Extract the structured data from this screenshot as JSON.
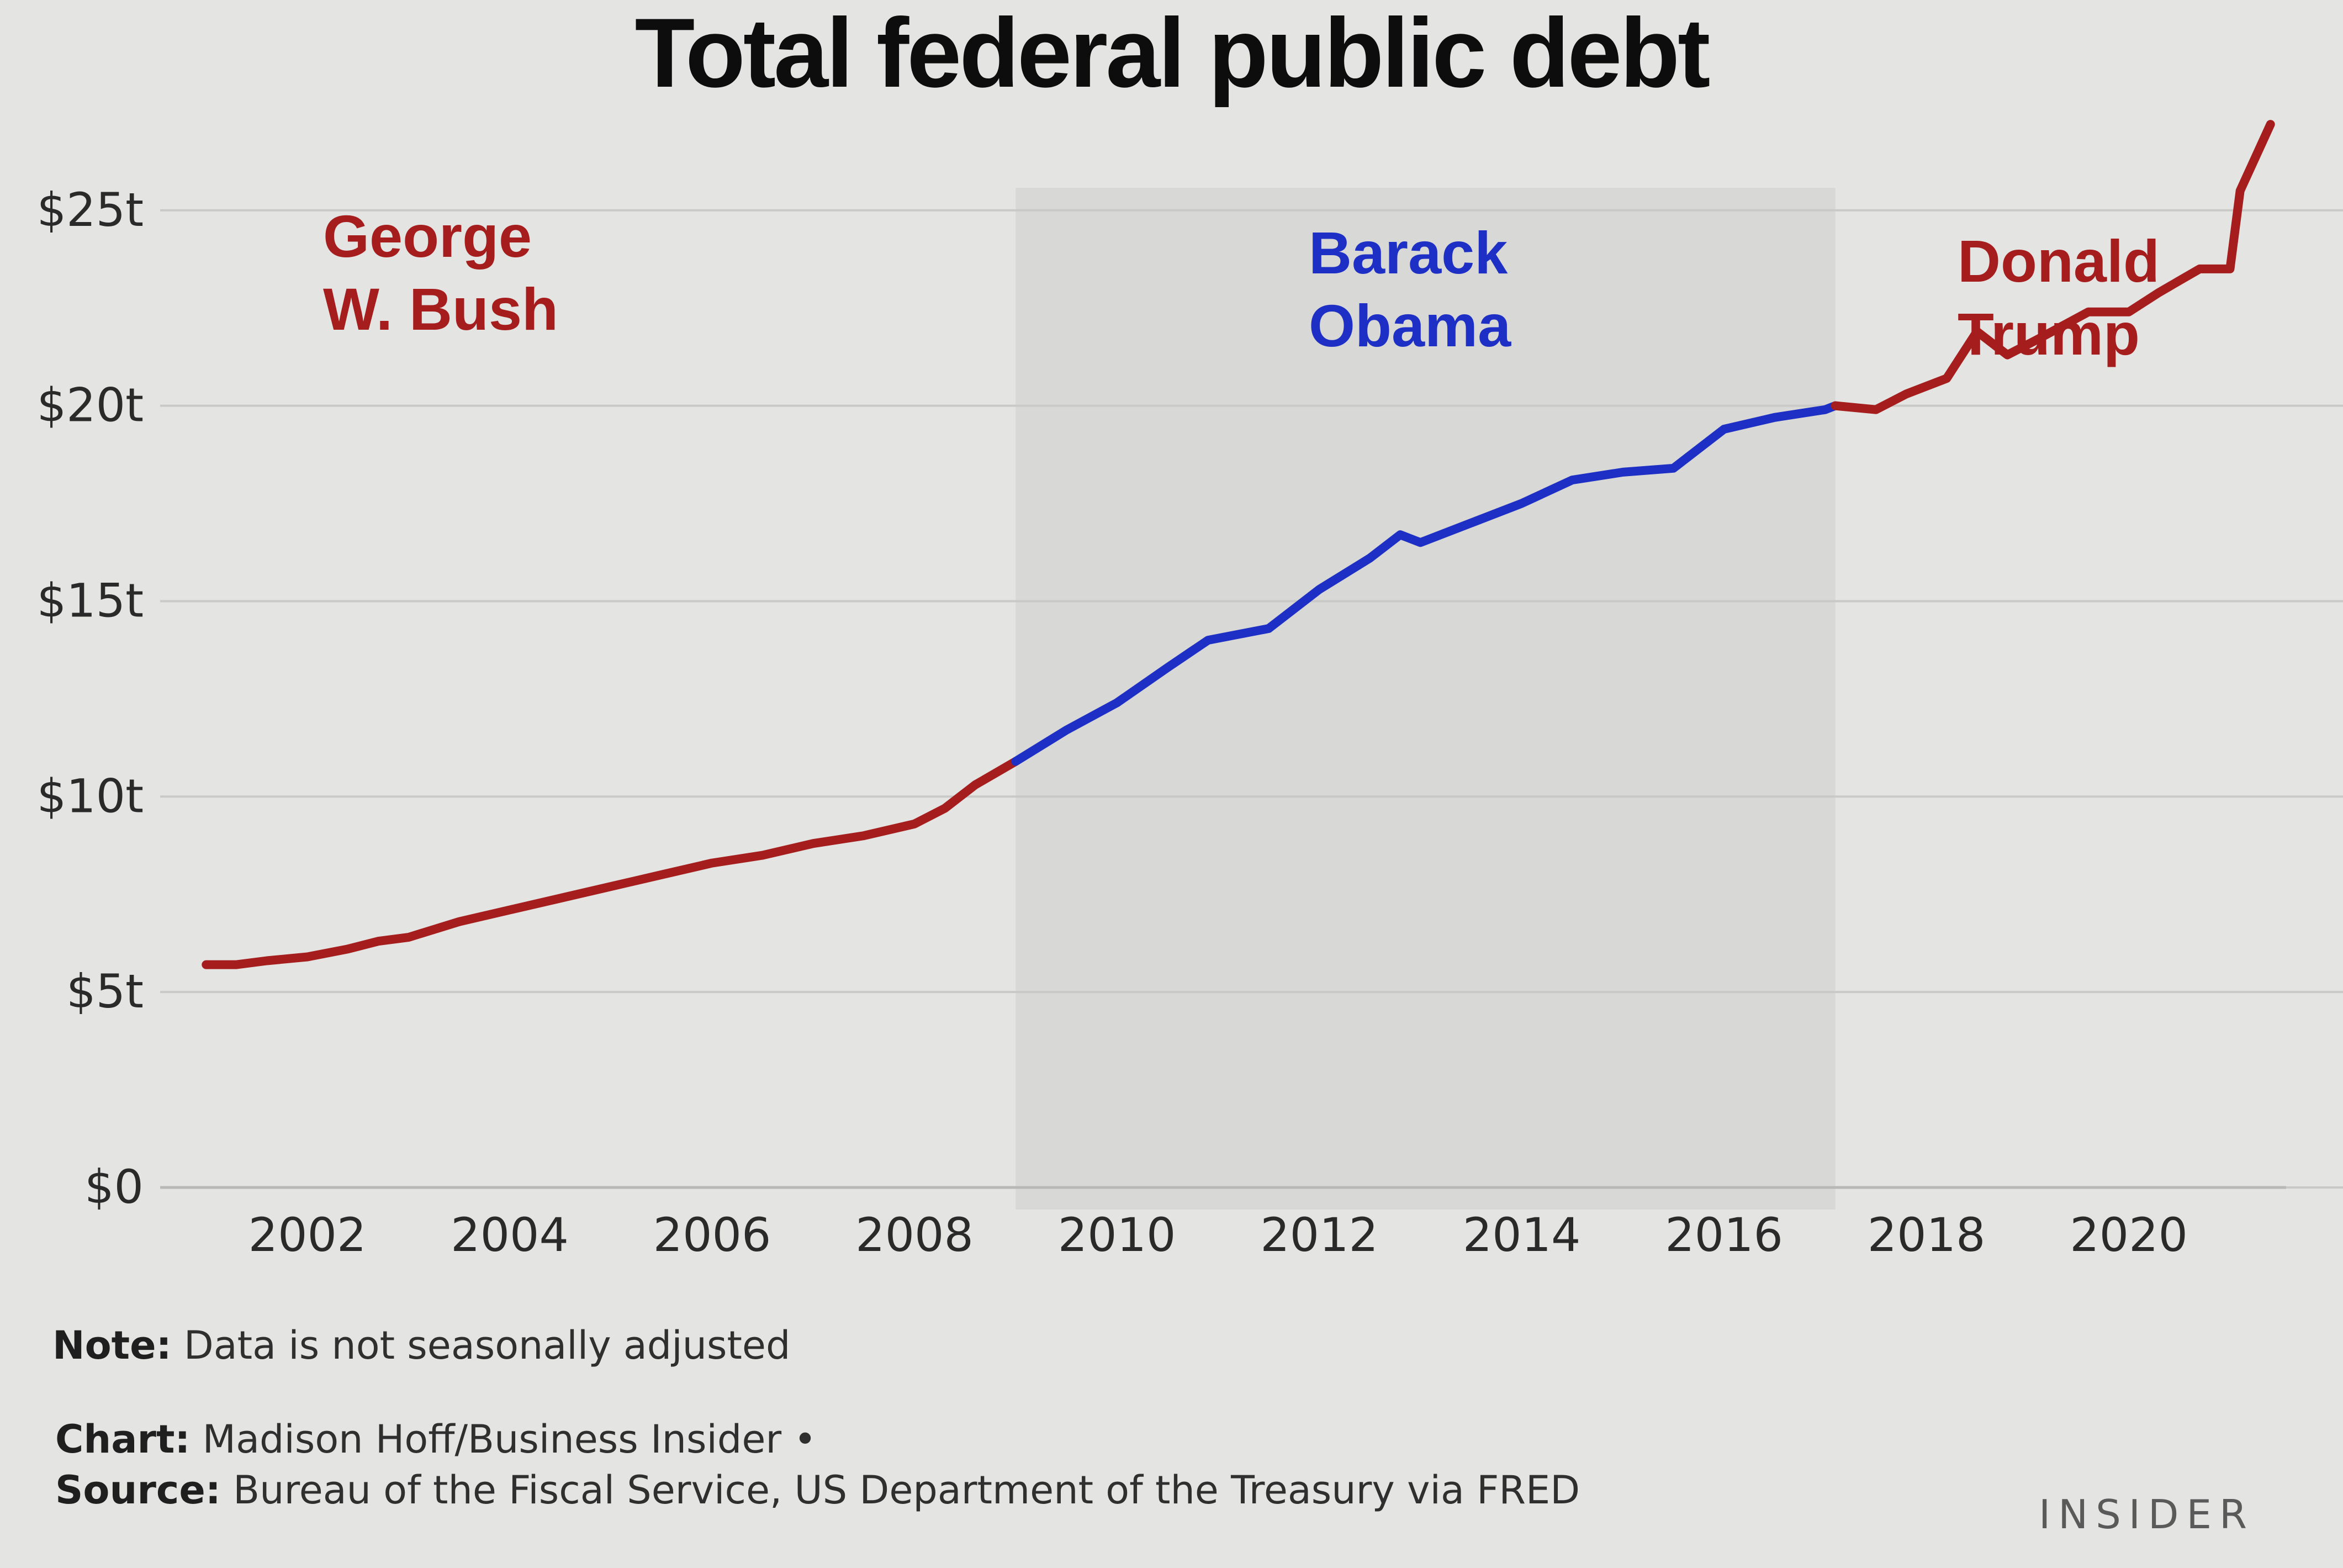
{
  "chart_data": {
    "type": "line",
    "title": "Total federal public debt",
    "xlabel": "",
    "ylabel": "",
    "xlim": [
      2000.6,
      2021.5
    ],
    "ylim": [
      0,
      26
    ],
    "x_ticks": [
      "2002",
      "2004",
      "2006",
      "2008",
      "2010",
      "2012",
      "2014",
      "2016",
      "2018",
      "2020"
    ],
    "y_ticks": [
      "$0",
      "$5t",
      "$10t",
      "$15t",
      "$20t",
      "$25t"
    ],
    "y_tick_values": [
      0,
      5,
      10,
      15,
      20,
      25
    ],
    "grid": true,
    "units": "trillions of dollars",
    "series": [
      {
        "name": "George W. Bush",
        "color": "#a51d1d",
        "x": [
          2001.0,
          2001.3,
          2001.6,
          2002.0,
          2002.4,
          2002.7,
          2003.0,
          2003.5,
          2004.0,
          2004.5,
          2005.0,
          2005.5,
          2006.0,
          2006.5,
          2007.0,
          2007.5,
          2008.0,
          2008.3,
          2008.6,
          2009.0
        ],
        "values": [
          5.7,
          5.7,
          5.8,
          5.9,
          6.1,
          6.3,
          6.4,
          6.8,
          7.1,
          7.4,
          7.7,
          8.0,
          8.3,
          8.5,
          8.8,
          9.0,
          9.3,
          9.7,
          10.3,
          10.9
        ]
      },
      {
        "name": "Barack Obama",
        "color": "#1d2fc4",
        "x": [
          2009.0,
          2009.5,
          2010.0,
          2010.5,
          2010.9,
          2011.5,
          2012.0,
          2012.5,
          2012.8,
          2013.0,
          2013.5,
          2014.0,
          2014.5,
          2015.0,
          2015.5,
          2016.0,
          2016.5,
          2017.0,
          2017.1
        ],
        "values": [
          10.9,
          11.7,
          12.4,
          13.3,
          14.0,
          14.3,
          15.3,
          16.1,
          16.7,
          16.5,
          17.0,
          17.5,
          18.1,
          18.3,
          18.4,
          19.4,
          19.7,
          19.9,
          20.0
        ]
      },
      {
        "name": "Donald Trump",
        "color": "#a51d1d",
        "x": [
          2017.1,
          2017.5,
          2017.8,
          2018.2,
          2018.5,
          2018.8,
          2019.1,
          2019.6,
          2020.0,
          2020.3,
          2020.7,
          2021.0,
          2021.1,
          2021.4
        ],
        "values": [
          20.0,
          19.9,
          20.3,
          20.7,
          21.9,
          21.3,
          21.7,
          22.4,
          22.4,
          22.9,
          23.5,
          23.5,
          25.5,
          27.2
        ]
      }
    ],
    "annotations": [
      {
        "text_lines": [
          "George",
          "W. Bush"
        ],
        "color": "#a51d1d"
      },
      {
        "text_lines": [
          "Barack",
          "Obama"
        ],
        "color": "#1d2fc4"
      },
      {
        "text_lines": [
          "Donald",
          "Trump"
        ],
        "color": "#a51d1d"
      }
    ],
    "shaded_spans": [
      {
        "label": "Barack Obama",
        "x": [
          2009.0,
          2017.1
        ]
      }
    ]
  },
  "footer": {
    "note_label": "Note:",
    "note_text": " Data is not seasonally adjusted",
    "chart_label": "Chart:",
    "chart_text": " Madison Hoff/Business Insider •",
    "source_label": "Source:",
    "source_text": " Bureau of the Fiscal Service, US Department of the Treasury via FRED",
    "brand": "INSIDER"
  },
  "colors": {
    "background": "#e4e4e2",
    "shade": "#d8d8d6",
    "grid": "#c9c9c7",
    "republican": "#a51d1d",
    "democrat": "#1d2fc4"
  }
}
